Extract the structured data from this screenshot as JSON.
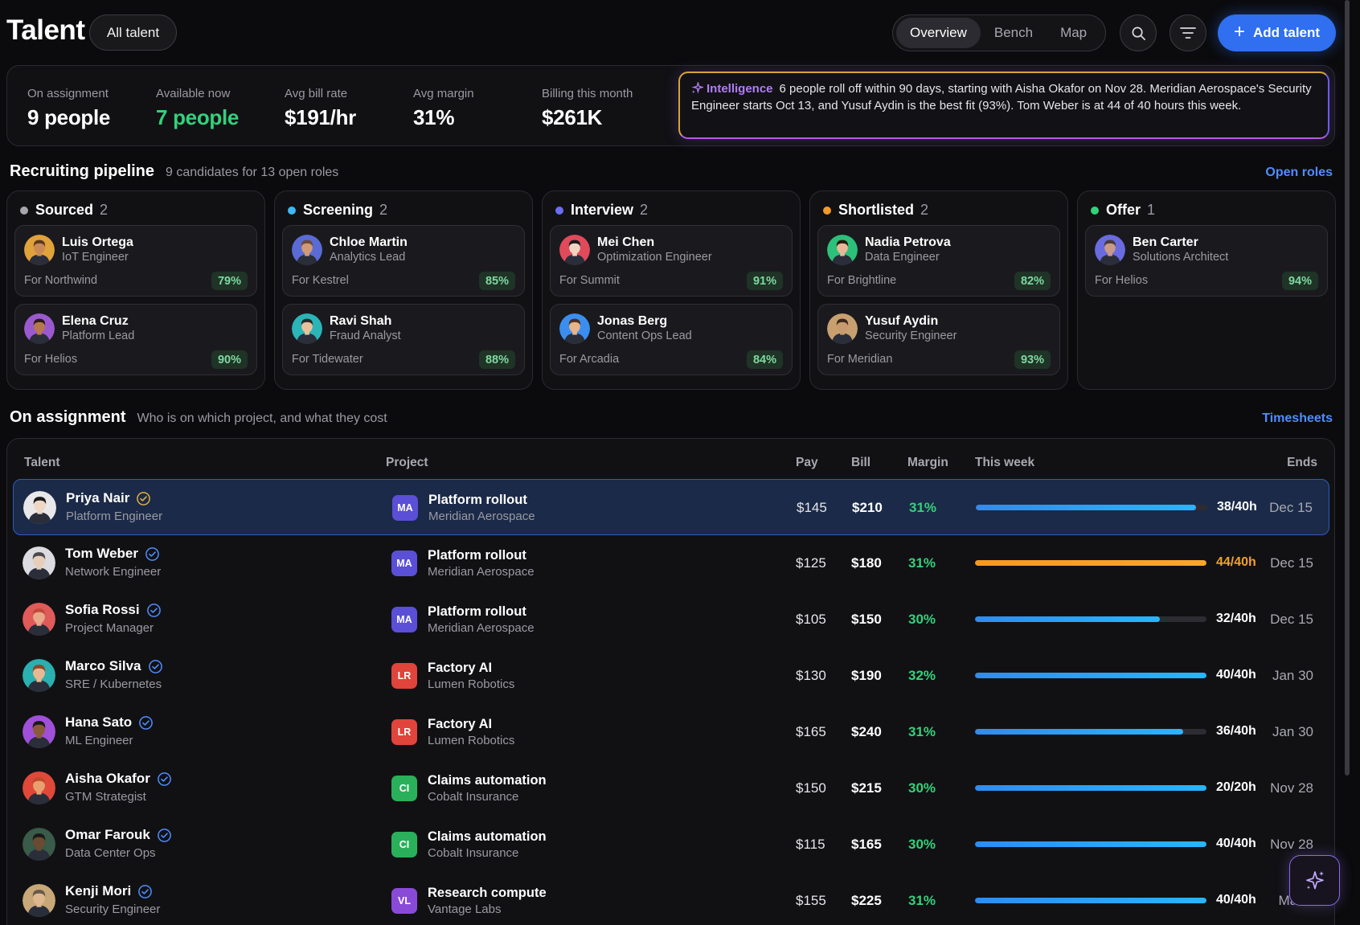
{
  "header": {
    "title": "Talent",
    "filter_label": "All talent",
    "tabs": [
      {
        "label": "Overview",
        "active": true
      },
      {
        "label": "Bench",
        "active": false
      },
      {
        "label": "Map",
        "active": false
      }
    ],
    "add_label": "Add talent"
  },
  "stats": [
    {
      "label": "On assignment",
      "value": "9 people",
      "color": "#ffffff"
    },
    {
      "label": "Available now",
      "value": "7 people",
      "color": "#34d17a"
    },
    {
      "label": "Avg bill rate",
      "value": "$191/hr",
      "color": "#ffffff"
    },
    {
      "label": "Avg margin",
      "value": "31%",
      "color": "#ffffff"
    },
    {
      "label": "Billing this month",
      "value": "$261K",
      "color": "#ffffff"
    }
  ],
  "intelligence": {
    "tag": "Intelligence",
    "text": "6 people roll off within 90 days, starting with Aisha Okafor on Nov 28. Meridian Aerospace's Security Engineer starts Oct 13, and Yusuf Aydin is the best fit (93%). Tom Weber is at 44 of 40 hours this week."
  },
  "pipeline": {
    "title": "Recruiting pipeline",
    "subtitle": "9 candidates for 13 open roles",
    "link": "Open roles",
    "columns": [
      {
        "name": "Sourced",
        "count": "2",
        "color": "#a6a6ad",
        "cards": [
          {
            "name": "Luis Ortega",
            "role": "IoT Engineer",
            "client": "For Northwind",
            "score": "79%",
            "skin": "#c98a55",
            "hair": "#5a3a22",
            "bg": "#e0a23a"
          },
          {
            "name": "Elena Cruz",
            "role": "Platform Lead",
            "client": "For Helios",
            "score": "90%",
            "skin": "#b7784c",
            "hair": "#2d1c14",
            "bg": "#9b59d0"
          }
        ]
      },
      {
        "name": "Screening",
        "count": "2",
        "color": "#3fb7f5",
        "cards": [
          {
            "name": "Chloe Martin",
            "role": "Analytics Lead",
            "client": "For Kestrel",
            "score": "85%",
            "skin": "#d09a78",
            "hair": "#6b4a3a",
            "bg": "#5a6bd6"
          },
          {
            "name": "Ravi Shah",
            "role": "Fraud Analyst",
            "client": "For Tidewater",
            "score": "88%",
            "skin": "#e8c29c",
            "hair": "#2a2a2a",
            "bg": "#2bb5b8"
          }
        ]
      },
      {
        "name": "Interview",
        "count": "2",
        "color": "#6b6ef0",
        "cards": [
          {
            "name": "Mei Chen",
            "role": "Optimization Engineer",
            "client": "For Summit",
            "score": "91%",
            "skin": "#f0d4c0",
            "hair": "#1c1c1c",
            "bg": "#e04a5a"
          },
          {
            "name": "Jonas Berg",
            "role": "Content Ops Lead",
            "client": "For Arcadia",
            "score": "84%",
            "skin": "#e8b48a",
            "hair": "#4a3020",
            "bg": "#3a8ef0"
          }
        ]
      },
      {
        "name": "Shortlisted",
        "count": "2",
        "color": "#f29b2c",
        "cards": [
          {
            "name": "Nadia Petrova",
            "role": "Data Engineer",
            "client": "For Brightline",
            "score": "82%",
            "skin": "#e8b898",
            "hair": "#2a1a10",
            "bg": "#2cc07a"
          },
          {
            "name": "Yusuf Aydin",
            "role": "Security Engineer",
            "client": "For Meridian",
            "score": "93%",
            "skin": "#c89a70",
            "hair": "#3a2a1a",
            "bg": "#c8a070"
          }
        ]
      },
      {
        "name": "Offer",
        "count": "1",
        "color": "#34d17a",
        "cards": [
          {
            "name": "Ben Carter",
            "role": "Solutions Architect",
            "client": "For Helios",
            "score": "94%",
            "skin": "#c99a88",
            "hair": "#4a3a3a",
            "bg": "#6a6be0"
          }
        ]
      }
    ]
  },
  "assignments": {
    "title": "On assignment",
    "subtitle": "Who is on which project, and what they cost",
    "link": "Timesheets",
    "columns": [
      "Talent",
      "Project",
      "Pay",
      "Bill",
      "Margin",
      "This week",
      "Ends"
    ],
    "rows": [
      {
        "name": "Priya Nair",
        "role": "Platform Engineer",
        "badge": "MA",
        "badge_color": "#5a4fd6",
        "project": "Platform rollout",
        "client": "Meridian Aerospace",
        "pay": "$145",
        "bill": "$210",
        "margin": "31%",
        "hours": "38/40h",
        "progress": 0.95,
        "over": false,
        "ends": "Dec 15",
        "selected": true,
        "skin": "#f0d6c4",
        "hair": "#1a1a1a",
        "bg": "#e8e8ea",
        "verify": "#e0b040"
      },
      {
        "name": "Tom Weber",
        "role": "Network Engineer",
        "badge": "MA",
        "badge_color": "#5a4fd6",
        "project": "Platform rollout",
        "client": "Meridian Aerospace",
        "pay": "$125",
        "bill": "$180",
        "margin": "31%",
        "hours": "44/40h",
        "progress": 1.0,
        "over": true,
        "ends": "Dec 15",
        "selected": false,
        "skin": "#e8cdb8",
        "hair": "#4a4a4a",
        "bg": "#dcdce0",
        "verify": "#4f8dff"
      },
      {
        "name": "Sofia Rossi",
        "role": "Project Manager",
        "badge": "MA",
        "badge_color": "#5a4fd6",
        "project": "Platform rollout",
        "client": "Meridian Aerospace",
        "pay": "$105",
        "bill": "$150",
        "margin": "30%",
        "hours": "32/40h",
        "progress": 0.8,
        "over": false,
        "ends": "Dec 15",
        "selected": false,
        "skin": "#e8a88a",
        "hair": "#c24a3a",
        "bg": "#e05a5a",
        "verify": "#4f8dff"
      },
      {
        "name": "Marco Silva",
        "role": "SRE / Kubernetes",
        "badge": "LR",
        "badge_color": "#e0443a",
        "project": "Factory AI",
        "client": "Lumen Robotics",
        "pay": "$130",
        "bill": "$190",
        "margin": "32%",
        "hours": "40/40h",
        "progress": 1.0,
        "over": false,
        "ends": "Jan 30",
        "selected": false,
        "skin": "#e8b890",
        "hair": "#8a4a2a",
        "bg": "#2ab0b0",
        "verify": "#4f8dff"
      },
      {
        "name": "Hana Sato",
        "role": "ML Engineer",
        "badge": "LR",
        "badge_color": "#e0443a",
        "project": "Factory AI",
        "client": "Lumen Robotics",
        "pay": "$165",
        "bill": "$240",
        "margin": "31%",
        "hours": "36/40h",
        "progress": 0.9,
        "over": false,
        "ends": "Jan 30",
        "selected": false,
        "skin": "#8a5a3a",
        "hair": "#1a1a1a",
        "bg": "#a050d8",
        "verify": "#4f8dff"
      },
      {
        "name": "Aisha Okafor",
        "role": "GTM Strategist",
        "badge": "CI",
        "badge_color": "#2ab05a",
        "project": "Claims automation",
        "client": "Cobalt Insurance",
        "pay": "$150",
        "bill": "$215",
        "margin": "30%",
        "hours": "20/20h",
        "progress": 1.0,
        "over": false,
        "ends": "Nov 28",
        "selected": false,
        "skin": "#e8a070",
        "hair": "#c04a2a",
        "bg": "#e0483a",
        "verify": "#4f8dff"
      },
      {
        "name": "Omar Farouk",
        "role": "Data Center Ops",
        "badge": "CI",
        "badge_color": "#2ab05a",
        "project": "Claims automation",
        "client": "Cobalt Insurance",
        "pay": "$115",
        "bill": "$165",
        "margin": "30%",
        "hours": "40/40h",
        "progress": 1.0,
        "over": false,
        "ends": "Nov 28",
        "selected": false,
        "skin": "#6a4a30",
        "hair": "#1a1a1a",
        "bg": "#3a5a4a",
        "verify": "#4f8dff"
      },
      {
        "name": "Kenji Mori",
        "role": "Security Engineer",
        "badge": "VL",
        "badge_color": "#8a4ad8",
        "project": "Research compute",
        "client": "Vantage Labs",
        "pay": "$155",
        "bill": "$225",
        "margin": "31%",
        "hours": "40/40h",
        "progress": 1.0,
        "over": false,
        "ends": "Mar 5",
        "selected": false,
        "skin": "#e0b890",
        "hair": "#6a5a4a",
        "bg": "#c8a878",
        "verify": "#4f8dff"
      }
    ]
  },
  "icons": {
    "search": "search-icon",
    "filter": "filter-icon",
    "add": "plus-icon",
    "sparkle": "sparkle-icon",
    "verified": "verified-check-icon"
  }
}
